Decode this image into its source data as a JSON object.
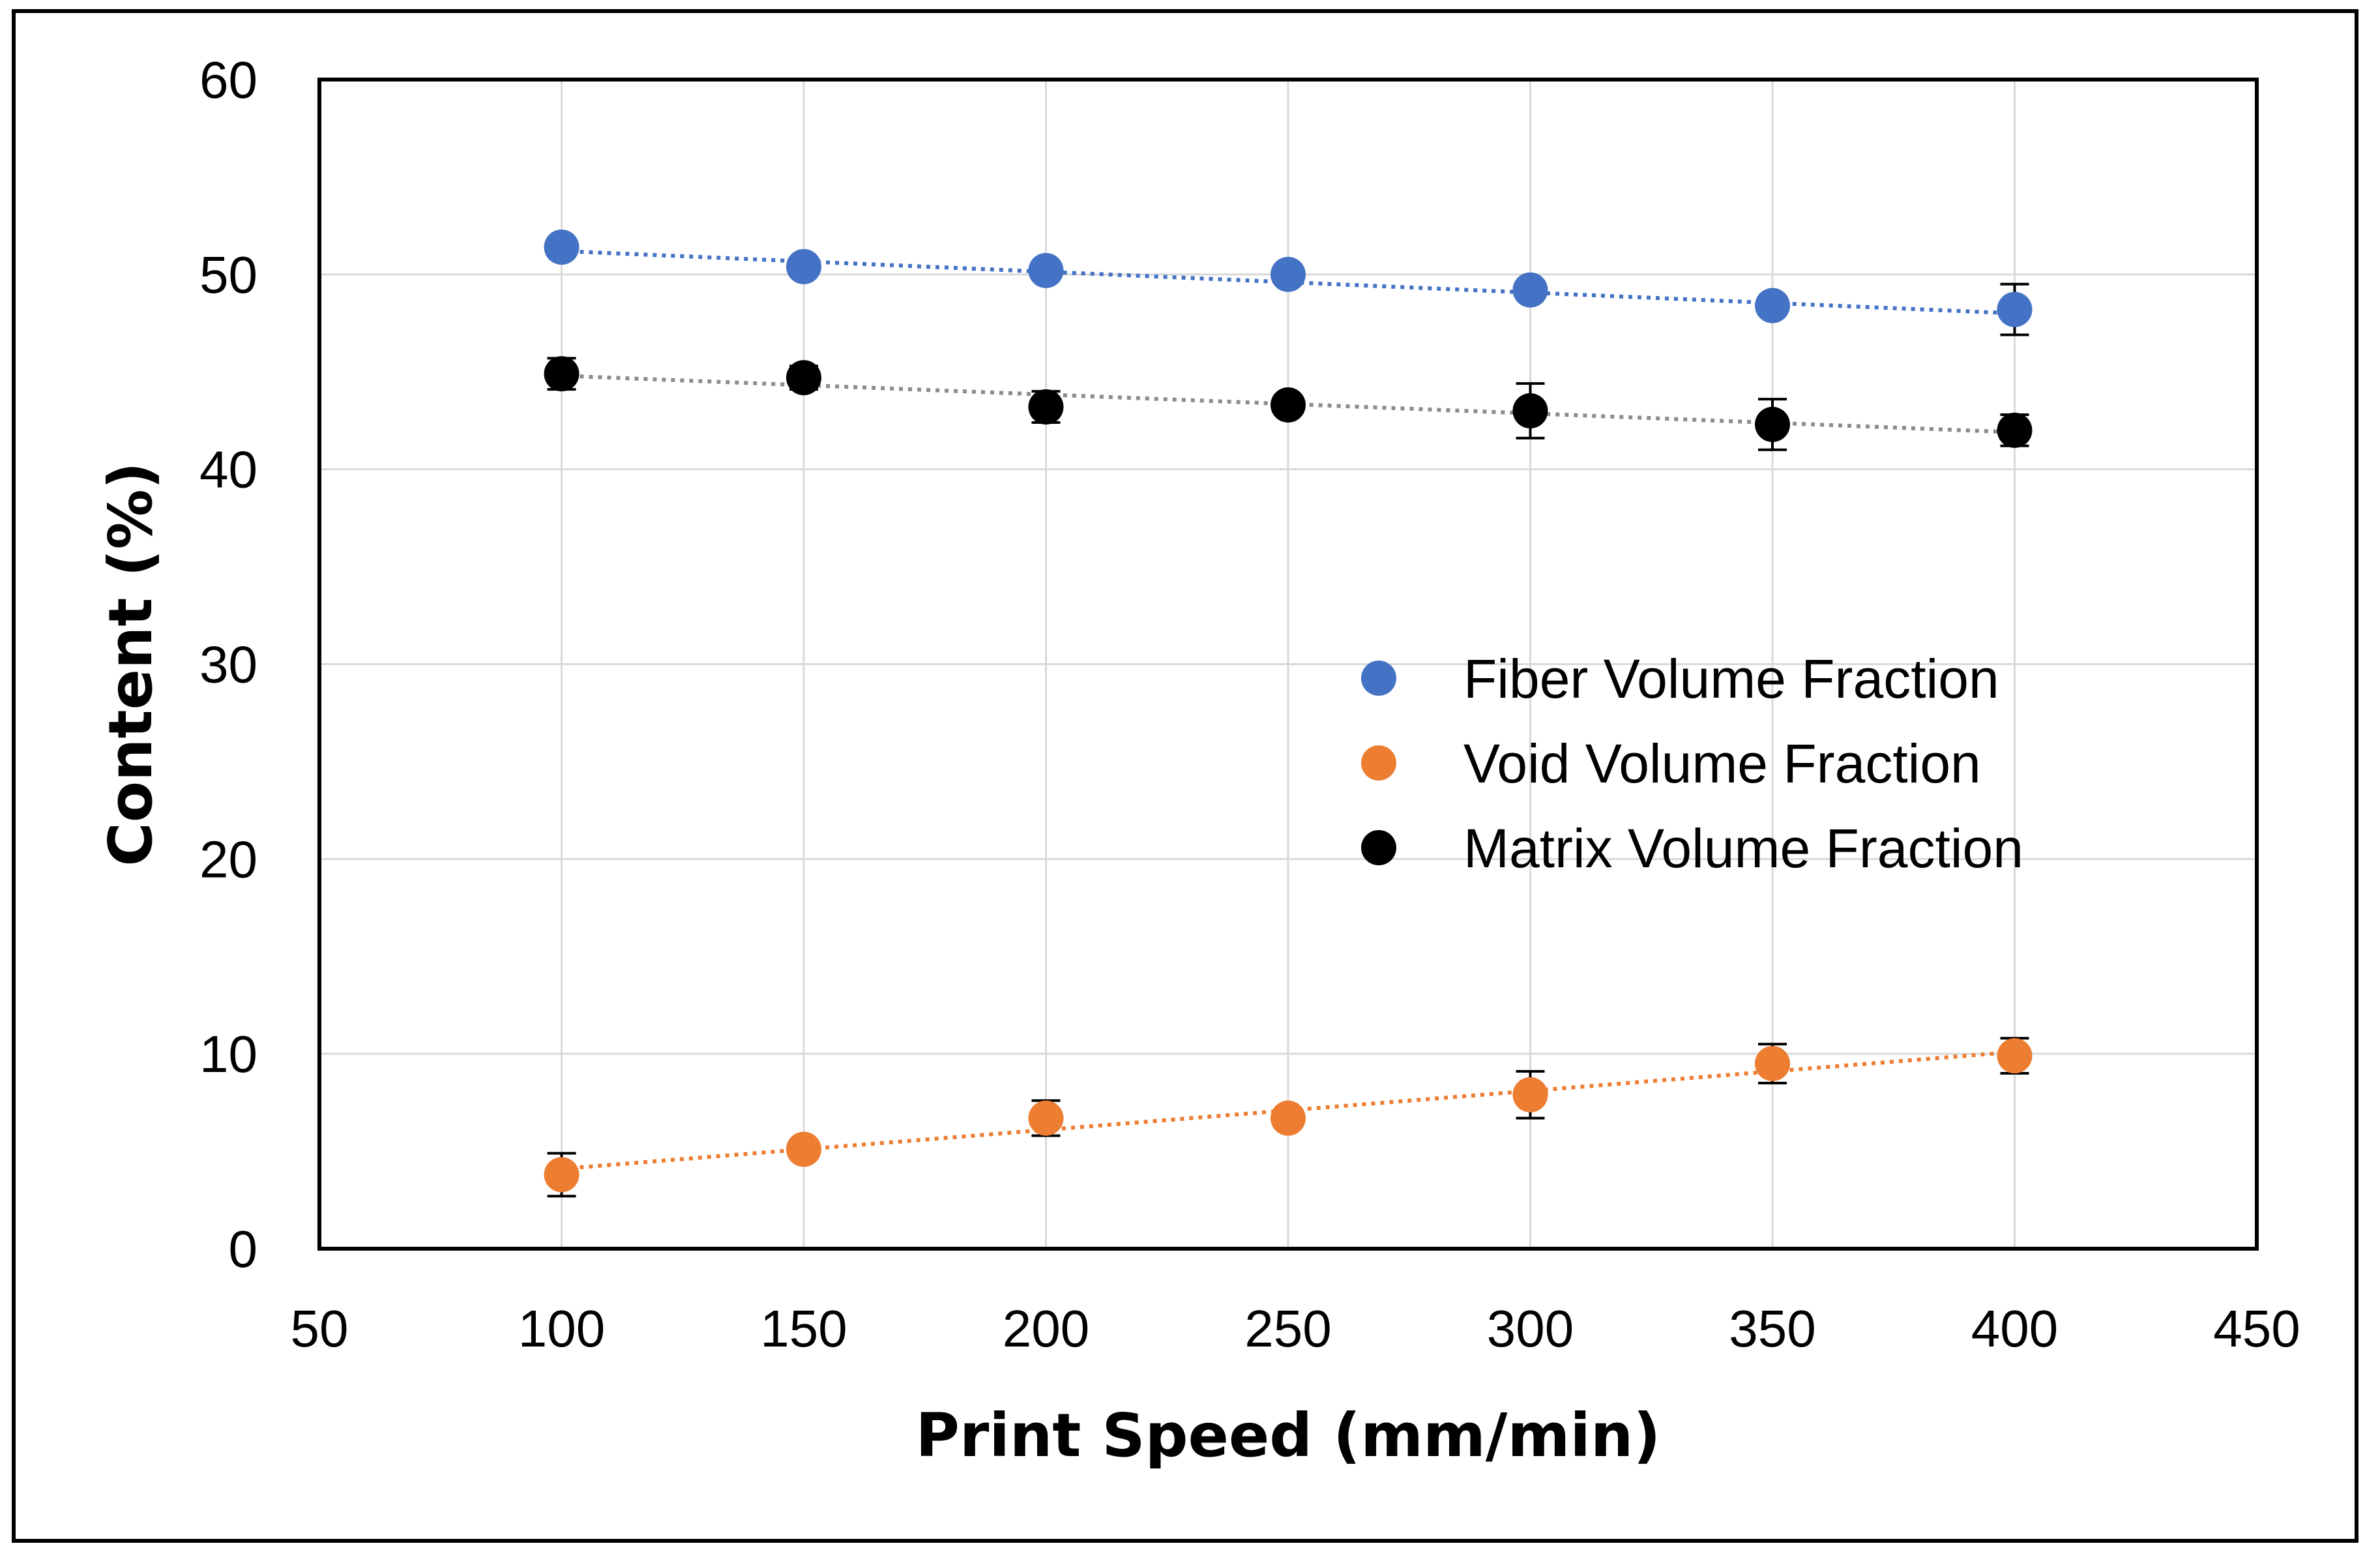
{
  "chart_data": {
    "type": "scatter",
    "title": "",
    "xlabel": "Print Speed (mm/min)",
    "ylabel": "Content (%)",
    "xlim": [
      50,
      450
    ],
    "ylim": [
      0,
      60
    ],
    "xticks": [
      50,
      100,
      150,
      200,
      250,
      300,
      350,
      400,
      450
    ],
    "yticks": [
      0,
      10,
      20,
      30,
      40,
      50,
      60
    ],
    "grid": true,
    "legend_position": "right-center",
    "x": [
      100,
      150,
      200,
      250,
      300,
      350,
      400
    ],
    "series": [
      {
        "name": "Fiber Volume Fraction",
        "color": "#4472C4",
        "values": [
          51.4,
          50.4,
          50.2,
          50.0,
          49.2,
          48.4,
          48.2
        ],
        "errors": [
          0.3,
          0.3,
          0.3,
          0.3,
          0.4,
          0.4,
          1.3
        ],
        "trendline": [
          51.2,
          48.0
        ]
      },
      {
        "name": "Void Volume Fraction",
        "color": "#ED7D31",
        "values": [
          3.8,
          5.1,
          6.7,
          6.7,
          7.9,
          9.5,
          9.9
        ],
        "errors": [
          1.1,
          0.4,
          0.9,
          0.4,
          1.2,
          1.0,
          0.9
        ],
        "trendline": [
          4.1,
          10.1
        ]
      },
      {
        "name": "Matrix Volume Fraction",
        "color": "#000000",
        "values": [
          44.9,
          44.7,
          43.2,
          43.3,
          43.0,
          42.3,
          42.0
        ],
        "errors": [
          0.8,
          0.6,
          0.8,
          0.4,
          1.4,
          1.3,
          0.8
        ],
        "trendline": [
          44.8,
          41.9
        ]
      }
    ]
  }
}
